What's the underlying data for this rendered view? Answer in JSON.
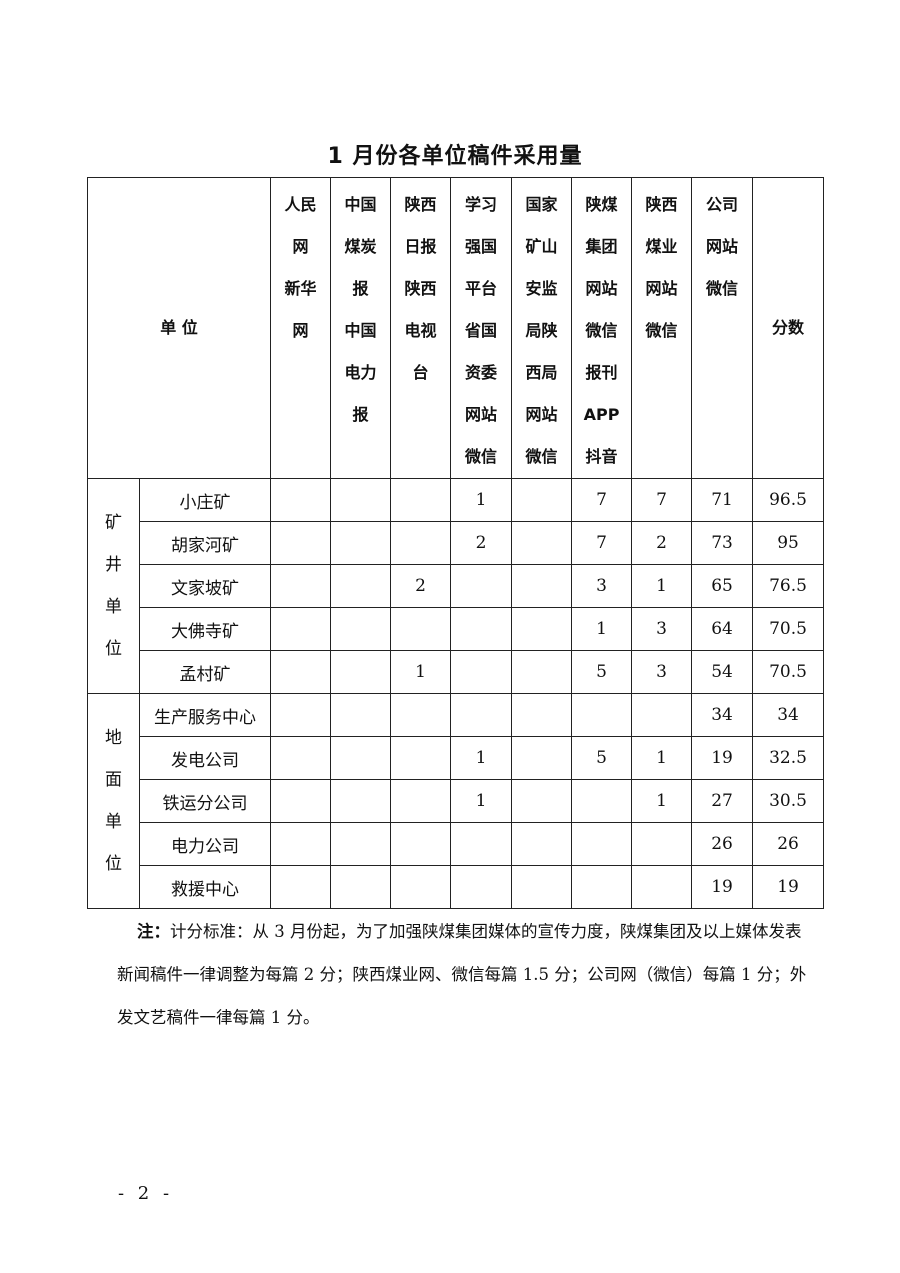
{
  "title": "1 月份各单位稿件采用量",
  "table": {
    "unit_header": "单 位",
    "columns": [
      "人民\n网\n新华\n网",
      "中国\n煤炭\n报\n中国\n电力\n报",
      "陕西\n日报\n陕西\n电视\n台",
      "学习\n强国\n平台\n省国\n资委\n网站\n微信",
      "国家\n矿山\n安监\n局陕\n西局\n网站\n微信",
      "陕煤\n集团\n网站\n微信\n报刊\nAPP\n抖音",
      "陕西\n煤业\n网站\n微信",
      "公司\n网站\n微信"
    ],
    "score_header": "分数",
    "groups": [
      {
        "name": "矿\n井\n单\n位",
        "rows": [
          {
            "unit": "小庄矿",
            "values": [
              "",
              "",
              "",
              "1",
              "",
              "7",
              "7",
              "71"
            ],
            "score": "96.5"
          },
          {
            "unit": "胡家河矿",
            "values": [
              "",
              "",
              "",
              "2",
              "",
              "7",
              "2",
              "73"
            ],
            "score": "95"
          },
          {
            "unit": "文家坡矿",
            "values": [
              "",
              "",
              "2",
              "",
              "",
              "3",
              "1",
              "65"
            ],
            "score": "76.5"
          },
          {
            "unit": "大佛寺矿",
            "values": [
              "",
              "",
              "",
              "",
              "",
              "1",
              "3",
              "64"
            ],
            "score": "70.5"
          },
          {
            "unit": "孟村矿",
            "values": [
              "",
              "",
              "1",
              "",
              "",
              "5",
              "3",
              "54"
            ],
            "score": "70.5"
          }
        ]
      },
      {
        "name": "地\n面\n单\n位",
        "rows": [
          {
            "unit": "生产服务中心",
            "values": [
              "",
              "",
              "",
              "",
              "",
              "",
              "",
              "34"
            ],
            "score": "34"
          },
          {
            "unit": "发电公司",
            "values": [
              "",
              "",
              "",
              "1",
              "",
              "5",
              "1",
              "19"
            ],
            "score": "32.5"
          },
          {
            "unit": "铁运分公司",
            "values": [
              "",
              "",
              "",
              "1",
              "",
              "",
              "1",
              "27"
            ],
            "score": "30.5"
          },
          {
            "unit": "电力公司",
            "values": [
              "",
              "",
              "",
              "",
              "",
              "",
              "",
              "26"
            ],
            "score": "26"
          },
          {
            "unit": "救援中心",
            "values": [
              "",
              "",
              "",
              "",
              "",
              "",
              "",
              "19"
            ],
            "score": "19"
          }
        ]
      }
    ]
  },
  "note": {
    "label": "注：",
    "text": "计分标准：从 3 月份起，为了加强陕煤集团媒体的宣传力度，陕煤集团及以上媒体发表新闻稿件一律调整为每篇 2 分；陕西煤业网、微信每篇 1.5 分；公司网（微信）每篇 1 分；外发文艺稿件一律每篇 1 分。"
  },
  "page_number": "- 2 -"
}
